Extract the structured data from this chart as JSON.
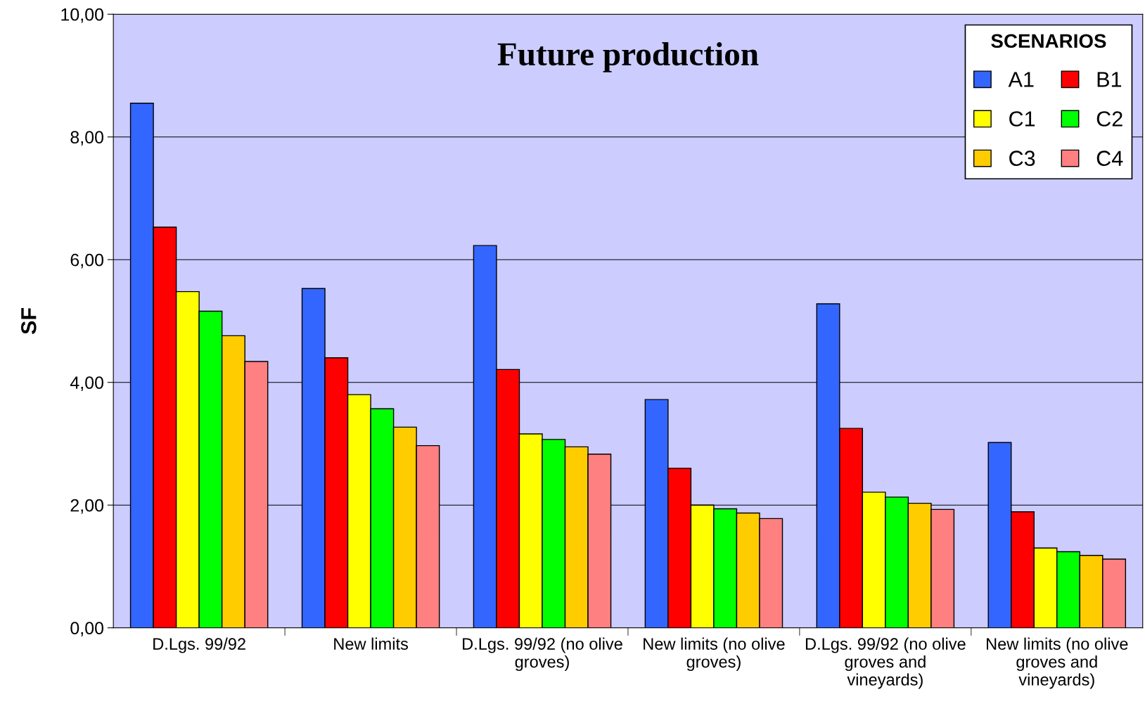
{
  "chart_data": {
    "type": "bar",
    "title": "Future production",
    "ylabel": "SF",
    "legend_title": "SCENARIOS",
    "categories": [
      "D.Lgs. 99/92",
      "New limits",
      "D.Lgs. 99/92 (no olive groves)",
      "New limits (no olive groves)",
      "D.Lgs. 99/92 (no olive groves and vineyards)",
      "New limits (no olive groves and vineyards)"
    ],
    "series": [
      {
        "name": "A1",
        "color": "#3366ff",
        "values": [
          8.55,
          5.53,
          6.23,
          3.72,
          5.28,
          3.02
        ]
      },
      {
        "name": "B1",
        "color": "#ff0000",
        "values": [
          6.53,
          4.4,
          4.21,
          2.6,
          3.25,
          1.89
        ]
      },
      {
        "name": "C1",
        "color": "#ffff00",
        "values": [
          5.48,
          3.8,
          3.16,
          2.0,
          2.21,
          1.3
        ]
      },
      {
        "name": "C2",
        "color": "#00ff00",
        "values": [
          5.16,
          3.57,
          3.07,
          1.94,
          2.13,
          1.24
        ]
      },
      {
        "name": "C3",
        "color": "#ffcc00",
        "values": [
          4.76,
          3.27,
          2.95,
          1.87,
          2.03,
          1.18
        ]
      },
      {
        "name": "C4",
        "color": "#ff8080",
        "values": [
          4.34,
          2.97,
          2.83,
          1.78,
          1.93,
          1.12
        ]
      }
    ],
    "ylim": [
      0,
      10
    ],
    "yticks": [
      {
        "value": 0,
        "label": "0,00"
      },
      {
        "value": 2,
        "label": "2,00"
      },
      {
        "value": 4,
        "label": "4,00"
      },
      {
        "value": 6,
        "label": "6,00"
      },
      {
        "value": 8,
        "label": "8,00"
      },
      {
        "value": 10,
        "label": "10,00"
      }
    ],
    "grid": "y",
    "legend": "top right"
  }
}
